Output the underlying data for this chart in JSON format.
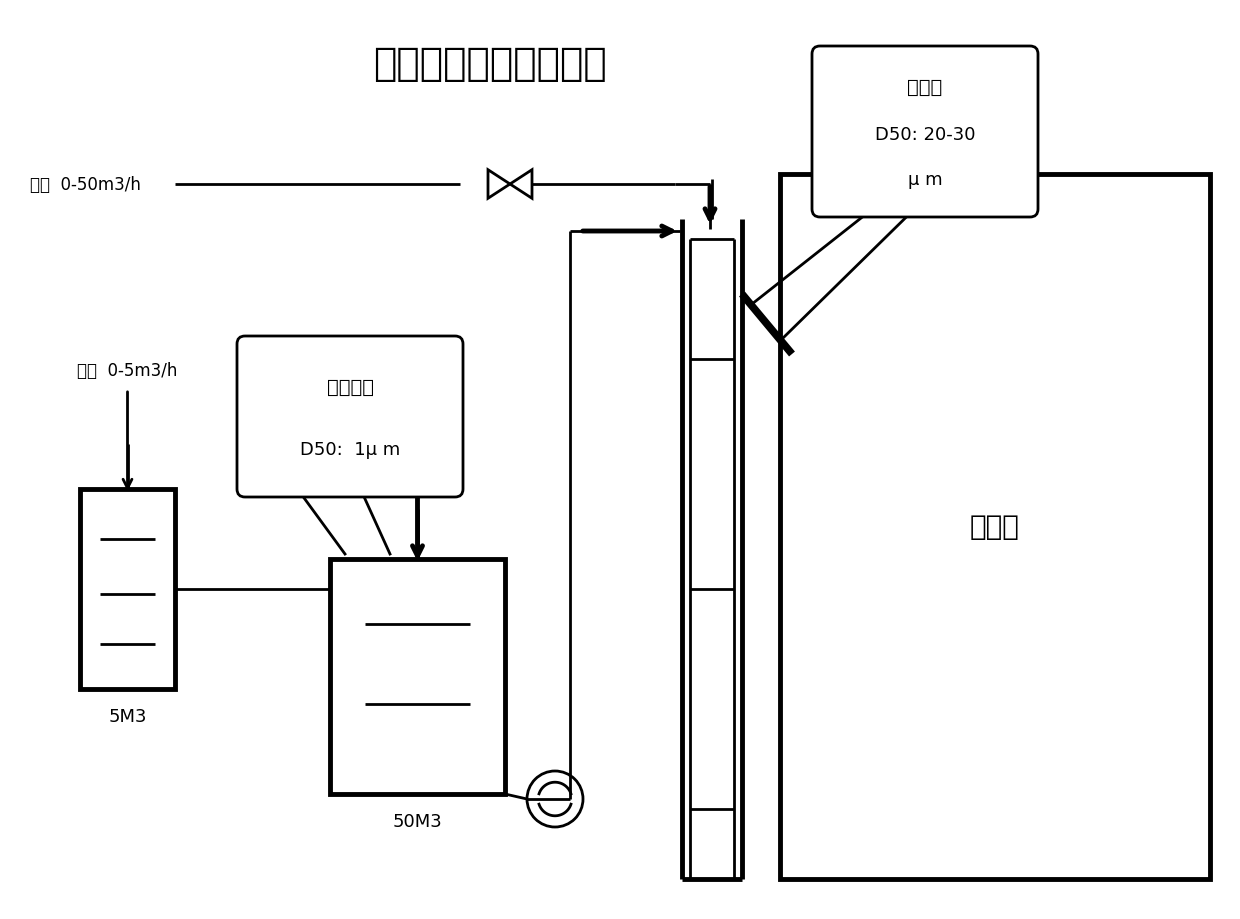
{
  "title": "细种子合成流程示意图",
  "title_fontsize": 26,
  "bg_color": "#ffffff",
  "lc": "#000000",
  "lw": 2.0,
  "lw_thick": 3.5,
  "labels": {
    "top_inlet": "精液  0-50m3/h",
    "small_tank_inlet": "精液  0-5m3/h",
    "small_tank": "5M3",
    "big_tank": "50M3",
    "seed_tank": "种分槽",
    "fine_seed_line1": "细种子",
    "fine_seed_line2": "D50: 20-30",
    "fine_seed_line3": "μ m",
    "nuclei_line1": "引发晶核",
    "nuclei_line2": "D50:  1μ m"
  }
}
